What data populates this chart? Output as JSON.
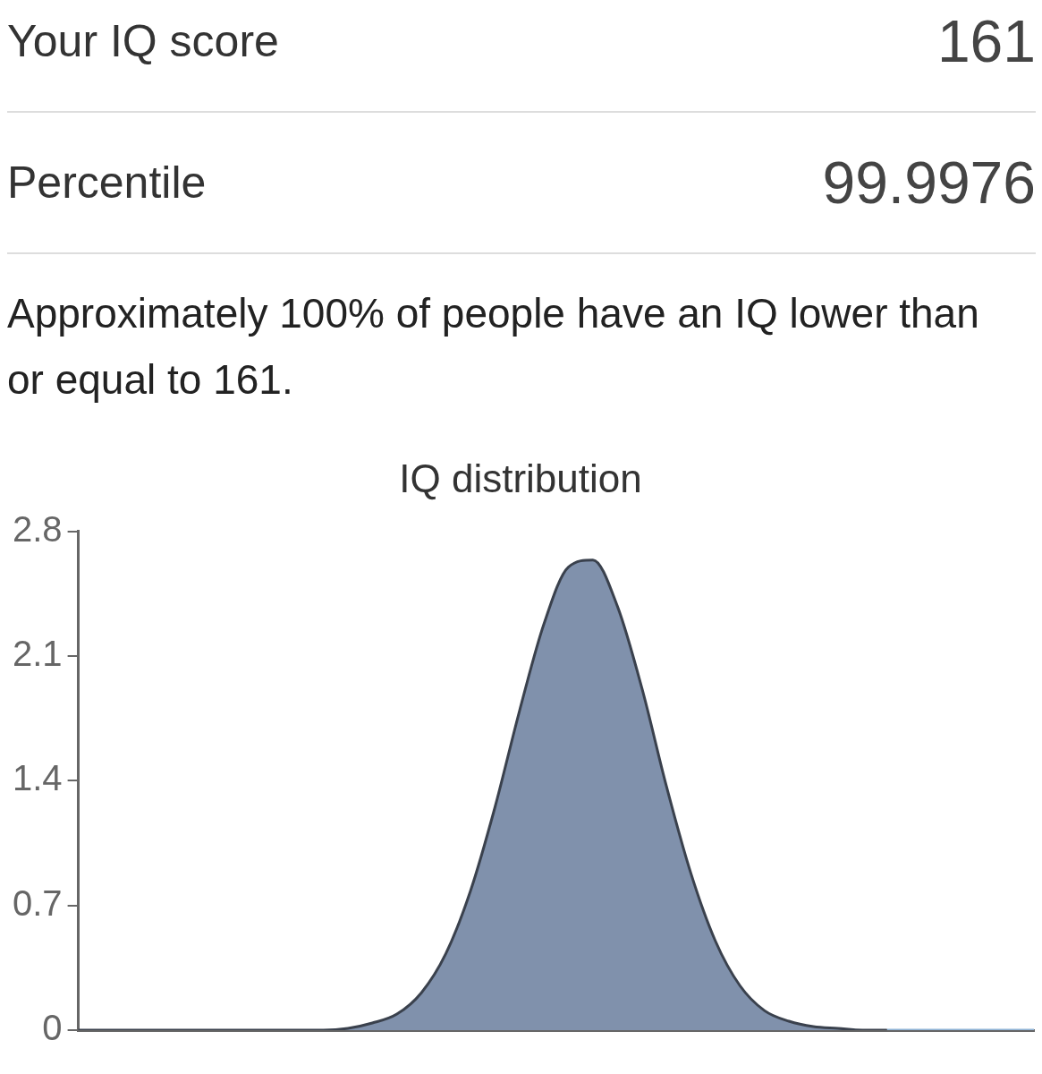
{
  "chart_data": {
    "type": "area",
    "title": "IQ distribution",
    "annotations": [
      "Your IQ score",
      "161",
      "Percentile",
      "99.9976",
      "Approximately 100% of people have an IQ lower than or equal to 161."
    ],
    "categories": [
      null,
      null,
      null,
      null,
      null,
      null,
      null,
      null,
      null,
      null,
      null,
      null,
      null,
      null,
      null,
      null,
      null,
      null,
      null,
      null,
      null,
      null,
      null,
      null,
      null,
      null,
      null,
      null,
      null,
      null,
      null,
      null,
      null,
      null,
      null,
      null,
      null,
      null,
      null,
      null
    ],
    "series": [
      {
        "color": "#8091ac",
        "values": [
          0,
          0,
          0,
          0,
          0,
          0,
          0,
          0,
          0,
          0,
          0,
          0.01,
          0.04,
          0.09,
          0.21,
          0.43,
          0.78,
          1.25,
          1.79,
          2.28,
          2.6,
          2.64,
          2.38,
          1.92,
          1.37,
          0.88,
          0.5,
          0.25,
          0.11,
          0.05,
          0.02,
          0.01,
          0,
          0,
          null,
          null,
          null,
          null,
          null,
          null
        ]
      },
      {
        "type": "line",
        "color": "#8fb3d6",
        "values": [
          null,
          null,
          null,
          null,
          null,
          null,
          null,
          null,
          null,
          null,
          null,
          null,
          null,
          null,
          null,
          null,
          null,
          null,
          null,
          null,
          null,
          null,
          null,
          null,
          null,
          null,
          null,
          null,
          null,
          null,
          null,
          null,
          null,
          0,
          0,
          0,
          0,
          0,
          0,
          0
        ]
      }
    ],
    "ylim": [
      0,
      2.8
    ],
    "yticks": [
      0,
      0.7,
      1.4,
      2.1,
      2.8
    ],
    "grid": false,
    "legend": false
  }
}
